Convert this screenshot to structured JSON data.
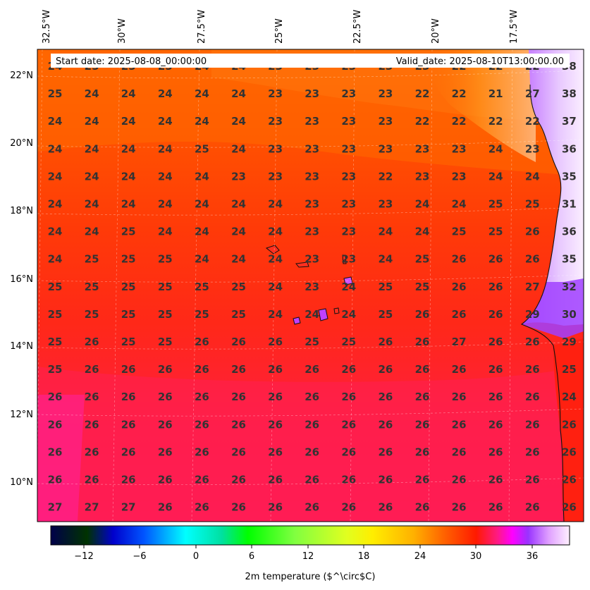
{
  "header": {
    "start_label": "Start date: 2025-08-08_00:00:00",
    "valid_label": "Valid_date: 2025-08-10T13:00:00.00"
  },
  "axes": {
    "lon_labels": [
      "32.5°W",
      "30°W",
      "27.5°W",
      "25°W",
      "22.5°W",
      "20°W",
      "17.5°W"
    ],
    "lat_labels": [
      "22°N",
      "20°N",
      "18°N",
      "16°N",
      "14°N",
      "12°N",
      "10°N"
    ]
  },
  "grid_values": [
    [
      "24",
      "25",
      "25",
      "25",
      "24",
      "24",
      "23",
      "23",
      "23",
      "23",
      "23",
      "22",
      "22",
      "22",
      "38"
    ],
    [
      "25",
      "24",
      "24",
      "24",
      "24",
      "24",
      "23",
      "23",
      "23",
      "23",
      "22",
      "22",
      "21",
      "27",
      "38"
    ],
    [
      "24",
      "24",
      "24",
      "24",
      "24",
      "24",
      "23",
      "23",
      "23",
      "23",
      "22",
      "22",
      "22",
      "22",
      "37"
    ],
    [
      "24",
      "24",
      "24",
      "24",
      "25",
      "24",
      "23",
      "23",
      "23",
      "23",
      "23",
      "23",
      "24",
      "23",
      "36"
    ],
    [
      "24",
      "24",
      "24",
      "24",
      "24",
      "23",
      "23",
      "23",
      "23",
      "22",
      "23",
      "23",
      "24",
      "24",
      "35"
    ],
    [
      "24",
      "24",
      "24",
      "24",
      "24",
      "24",
      "24",
      "23",
      "23",
      "23",
      "24",
      "24",
      "25",
      "25",
      "31"
    ],
    [
      "24",
      "24",
      "25",
      "24",
      "24",
      "24",
      "24",
      "23",
      "23",
      "24",
      "24",
      "25",
      "25",
      "26",
      "36"
    ],
    [
      "24",
      "25",
      "25",
      "25",
      "24",
      "24",
      "24",
      "23",
      "23",
      "24",
      "25",
      "26",
      "26",
      "26",
      "35"
    ],
    [
      "25",
      "25",
      "25",
      "25",
      "25",
      "25",
      "24",
      "23",
      "24",
      "25",
      "25",
      "26",
      "26",
      "27",
      "32"
    ],
    [
      "25",
      "25",
      "25",
      "25",
      "25",
      "25",
      "24",
      "24",
      "24",
      "25",
      "26",
      "26",
      "26",
      "29",
      "30"
    ],
    [
      "25",
      "26",
      "25",
      "25",
      "26",
      "26",
      "26",
      "25",
      "25",
      "26",
      "26",
      "27",
      "26",
      "26",
      "29"
    ],
    [
      "25",
      "26",
      "26",
      "26",
      "26",
      "26",
      "26",
      "26",
      "26",
      "26",
      "26",
      "26",
      "26",
      "26",
      "25"
    ],
    [
      "26",
      "26",
      "26",
      "26",
      "26",
      "26",
      "26",
      "26",
      "26",
      "26",
      "26",
      "26",
      "26",
      "26",
      "24"
    ],
    [
      "26",
      "26",
      "26",
      "26",
      "26",
      "26",
      "26",
      "26",
      "26",
      "26",
      "26",
      "26",
      "26",
      "26",
      "26"
    ],
    [
      "26",
      "26",
      "26",
      "26",
      "26",
      "26",
      "26",
      "26",
      "26",
      "26",
      "26",
      "26",
      "26",
      "26",
      "26"
    ],
    [
      "26",
      "26",
      "26",
      "26",
      "26",
      "26",
      "26",
      "26",
      "26",
      "26",
      "26",
      "26",
      "26",
      "26",
      "26"
    ],
    [
      "27",
      "27",
      "27",
      "26",
      "26",
      "26",
      "26",
      "26",
      "26",
      "26",
      "26",
      "26",
      "26",
      "26",
      "26"
    ]
  ],
  "colorbar": {
    "tick_labels": [
      "−12",
      "−6",
      "0",
      "6",
      "12",
      "18",
      "24",
      "30",
      "36"
    ],
    "title": "2m temperature ($^\\circ$C)",
    "colors": {
      "navy": "#00004a",
      "blue": "#0010ff",
      "cyan": "#00ffff",
      "green": "#00ff00",
      "yellow": "#ffff00",
      "orange": "#ff9900",
      "red": "#ff1a00",
      "magenta": "#ff00ff",
      "violet": "#9933ff",
      "pale": "#fff0ff"
    }
  },
  "map_colors": {
    "orange_north": "#ff6a00",
    "red_central": "#ff2a10",
    "pink_south": "#ff1a50",
    "land_violet": "#a040ff",
    "land_pale": "#f0d8ff",
    "value_text": "#333333"
  }
}
